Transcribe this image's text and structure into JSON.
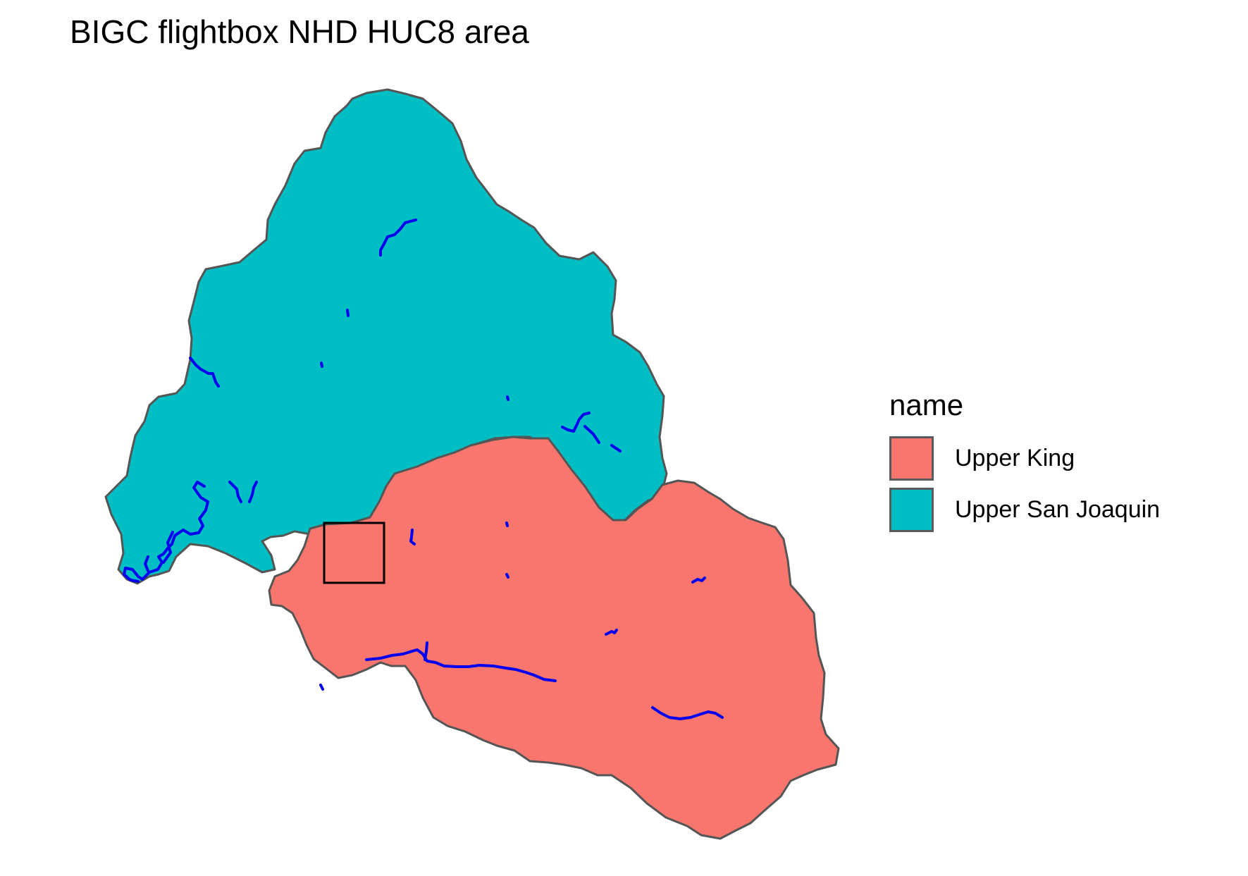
{
  "title": "BIGC flightbox NHD HUC8 area",
  "legend": {
    "title": "name",
    "items": [
      {
        "label": "Upper King",
        "color": "#F8766D"
      },
      {
        "label": "Upper San Joaquin",
        "color": "#00BFC4"
      }
    ]
  },
  "colors": {
    "region_border": "#555555",
    "rivers": "#0000EE",
    "flightbox": "#000000"
  }
}
